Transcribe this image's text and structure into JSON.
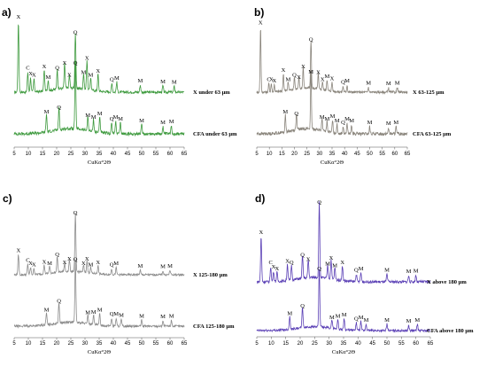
{
  "chart_data": [
    {
      "type": "line",
      "panel": "a)",
      "xlabel": "CuKα°2Θ",
      "x_ticks": [
        5,
        10,
        15,
        20,
        25,
        30,
        35,
        40,
        45,
        50,
        55,
        60,
        65
      ],
      "xlim": [
        5,
        65
      ],
      "color": "#3e9a3e",
      "series": [
        {
          "name": "X under 63 µm",
          "peaks": [
            {
              "x": 6.5,
              "h": 1.0,
              "label": "X"
            },
            {
              "x": 9.8,
              "h": 0.28,
              "label": "C"
            },
            {
              "x": 10.8,
              "h": 0.2,
              "label": "X"
            },
            {
              "x": 12.0,
              "h": 0.18,
              "label": "X"
            },
            {
              "x": 15.6,
              "h": 0.3,
              "label": "X"
            },
            {
              "x": 17.0,
              "h": 0.15,
              "label": "M"
            },
            {
              "x": 20.2,
              "h": 0.28,
              "label": "Q"
            },
            {
              "x": 22.8,
              "h": 0.35,
              "label": "X"
            },
            {
              "x": 24.5,
              "h": 0.18,
              "label": "X"
            },
            {
              "x": 26.6,
              "h": 0.78,
              "label": "Q"
            },
            {
              "x": 29.5,
              "h": 0.22,
              "label": "M"
            },
            {
              "x": 30.7,
              "h": 0.42,
              "label": "X"
            },
            {
              "x": 32.0,
              "h": 0.18,
              "label": "M"
            },
            {
              "x": 34.6,
              "h": 0.24,
              "label": "X"
            },
            {
              "x": 39.5,
              "h": 0.12,
              "label": "Q"
            },
            {
              "x": 41.2,
              "h": 0.14,
              "label": "M"
            },
            {
              "x": 49.5,
              "h": 0.1,
              "label": "M"
            },
            {
              "x": 57.5,
              "h": 0.09,
              "label": "M"
            },
            {
              "x": 61.5,
              "h": 0.08,
              "label": "M"
            }
          ]
        },
        {
          "name": "CFA under 63 µm",
          "peaks": [
            {
              "x": 16.4,
              "h": 0.2,
              "label": "M"
            },
            {
              "x": 20.8,
              "h": 0.25,
              "label": "Q"
            },
            {
              "x": 26.6,
              "h": 0.75,
              "label": "Q"
            },
            {
              "x": 31.0,
              "h": 0.16,
              "label": "M"
            },
            {
              "x": 33.0,
              "h": 0.14,
              "label": "M"
            },
            {
              "x": 35.2,
              "h": 0.18,
              "label": "M"
            },
            {
              "x": 39.4,
              "h": 0.12,
              "label": "Q"
            },
            {
              "x": 40.8,
              "h": 0.14,
              "label": "M"
            },
            {
              "x": 42.5,
              "h": 0.12,
              "label": "M"
            },
            {
              "x": 50.0,
              "h": 0.1,
              "label": "M"
            },
            {
              "x": 57.5,
              "h": 0.08,
              "label": "M"
            },
            {
              "x": 60.5,
              "h": 0.09,
              "label": "M"
            }
          ]
        }
      ]
    },
    {
      "type": "line",
      "panel": "b)",
      "xlabel": "CuKα°2Θ",
      "x_ticks": [
        5,
        10,
        15,
        20,
        25,
        30,
        35,
        40,
        45,
        50,
        55,
        60,
        65
      ],
      "xlim": [
        5,
        65
      ],
      "color": "#8a857c",
      "series": [
        {
          "name": "X 63-125 µm",
          "peaks": [
            {
              "x": 6.5,
              "h": 0.92,
              "label": "X"
            },
            {
              "x": 9.8,
              "h": 0.12,
              "label": "C"
            },
            {
              "x": 10.8,
              "h": 0.12,
              "label": "X"
            },
            {
              "x": 12.0,
              "h": 0.1,
              "label": "X"
            },
            {
              "x": 15.6,
              "h": 0.25,
              "label": "X"
            },
            {
              "x": 17.5,
              "h": 0.12,
              "label": "M"
            },
            {
              "x": 20.0,
              "h": 0.18,
              "label": "Q"
            },
            {
              "x": 21.8,
              "h": 0.15,
              "label": "X"
            },
            {
              "x": 23.5,
              "h": 0.3,
              "label": "X"
            },
            {
              "x": 26.6,
              "h": 0.68,
              "label": "Q"
            },
            {
              "x": 29.5,
              "h": 0.22,
              "label": "X"
            },
            {
              "x": 31.2,
              "h": 0.12,
              "label": "X"
            },
            {
              "x": 33.0,
              "h": 0.16,
              "label": "M"
            },
            {
              "x": 35.0,
              "h": 0.13,
              "label": "X"
            },
            {
              "x": 39.4,
              "h": 0.08,
              "label": "Q"
            },
            {
              "x": 41.0,
              "h": 0.1,
              "label": "M"
            },
            {
              "x": 49.5,
              "h": 0.07,
              "label": "M"
            },
            {
              "x": 57.5,
              "h": 0.06,
              "label": "M"
            },
            {
              "x": 61.0,
              "h": 0.07,
              "label": "M"
            }
          ]
        },
        {
          "name": "CFA 63-125 µm",
          "peaks": [
            {
              "x": 16.4,
              "h": 0.2,
              "label": "M"
            },
            {
              "x": 20.8,
              "h": 0.18,
              "label": "Q"
            },
            {
              "x": 26.6,
              "h": 0.65,
              "label": "M"
            },
            {
              "x": 31.0,
              "h": 0.14,
              "label": "M"
            },
            {
              "x": 33.0,
              "h": 0.12,
              "label": "M"
            },
            {
              "x": 35.2,
              "h": 0.15,
              "label": "M"
            },
            {
              "x": 37.0,
              "h": 0.1,
              "label": "M"
            },
            {
              "x": 39.4,
              "h": 0.08,
              "label": "Q"
            },
            {
              "x": 41.0,
              "h": 0.12,
              "label": "M"
            },
            {
              "x": 42.8,
              "h": 0.1,
              "label": "M"
            },
            {
              "x": 50.0,
              "h": 0.08,
              "label": "M"
            },
            {
              "x": 57.5,
              "h": 0.07,
              "label": "M"
            },
            {
              "x": 60.5,
              "h": 0.08,
              "label": "M"
            }
          ]
        }
      ]
    },
    {
      "type": "line",
      "panel": "c)",
      "xlabel": "CuKα°2Θ",
      "x_ticks": [
        5,
        10,
        15,
        20,
        25,
        30,
        35,
        40,
        45,
        50,
        55,
        60,
        65
      ],
      "xlim": [
        5,
        65
      ],
      "color": "#8c8c8c",
      "series": [
        {
          "name": "X 125-180 µm",
          "peaks": [
            {
              "x": 6.5,
              "h": 0.35,
              "label": "X"
            },
            {
              "x": 9.8,
              "h": 0.18,
              "label": "C"
            },
            {
              "x": 10.8,
              "h": 0.12,
              "label": "X"
            },
            {
              "x": 12.0,
              "h": 0.1,
              "label": "X"
            },
            {
              "x": 15.6,
              "h": 0.15,
              "label": "X"
            },
            {
              "x": 17.5,
              "h": 0.12,
              "label": "M"
            },
            {
              "x": 20.2,
              "h": 0.28,
              "label": "Q"
            },
            {
              "x": 22.8,
              "h": 0.14,
              "label": "X"
            },
            {
              "x": 24.5,
              "h": 0.2,
              "label": "X"
            },
            {
              "x": 26.6,
              "h": 1.0,
              "label": "Q"
            },
            {
              "x": 29.5,
              "h": 0.12,
              "label": "X"
            },
            {
              "x": 30.7,
              "h": 0.2,
              "label": "X"
            },
            {
              "x": 32.0,
              "h": 0.1,
              "label": "M"
            },
            {
              "x": 34.6,
              "h": 0.14,
              "label": "X"
            },
            {
              "x": 39.4,
              "h": 0.1,
              "label": "Q"
            },
            {
              "x": 41.0,
              "h": 0.12,
              "label": "M"
            },
            {
              "x": 49.5,
              "h": 0.08,
              "label": "M"
            },
            {
              "x": 57.5,
              "h": 0.07,
              "label": "M"
            },
            {
              "x": 60.0,
              "h": 0.08,
              "label": "M"
            }
          ]
        },
        {
          "name": "CFA 125-180 µm",
          "peaks": [
            {
              "x": 16.4,
              "h": 0.18,
              "label": "M"
            },
            {
              "x": 20.8,
              "h": 0.32,
              "label": "Q"
            },
            {
              "x": 26.6,
              "h": 0.95,
              "label": "Q"
            },
            {
              "x": 31.0,
              "h": 0.14,
              "label": "M"
            },
            {
              "x": 33.0,
              "h": 0.15,
              "label": "M"
            },
            {
              "x": 35.2,
              "h": 0.18,
              "label": "M"
            },
            {
              "x": 39.4,
              "h": 0.12,
              "label": "Q"
            },
            {
              "x": 41.0,
              "h": 0.12,
              "label": "M"
            },
            {
              "x": 42.8,
              "h": 0.1,
              "label": "M"
            },
            {
              "x": 50.0,
              "h": 0.09,
              "label": "M"
            },
            {
              "x": 57.5,
              "h": 0.08,
              "label": "M"
            },
            {
              "x": 60.5,
              "h": 0.09,
              "label": "M"
            }
          ]
        }
      ]
    },
    {
      "type": "line",
      "panel": "d)",
      "xlabel": "CuKα°2Θ",
      "x_ticks": [
        5,
        10,
        15,
        20,
        25,
        30,
        35,
        40,
        45,
        50,
        55,
        60,
        65
      ],
      "xlim": [
        5,
        65
      ],
      "color": "#5a3fb5",
      "series": [
        {
          "name": "X above 180 µm",
          "peaks": [
            {
              "x": 6.5,
              "h": 0.6,
              "label": "X"
            },
            {
              "x": 9.8,
              "h": 0.2,
              "label": "C"
            },
            {
              "x": 10.8,
              "h": 0.14,
              "label": "X"
            },
            {
              "x": 12.0,
              "h": 0.12,
              "label": "X"
            },
            {
              "x": 15.6,
              "h": 0.22,
              "label": "X"
            },
            {
              "x": 17.0,
              "h": 0.2,
              "label": "Q"
            },
            {
              "x": 20.8,
              "h": 0.3,
              "label": "Q"
            },
            {
              "x": 22.8,
              "h": 0.24,
              "label": "X"
            },
            {
              "x": 26.6,
              "h": 1.0,
              "label": "Q"
            },
            {
              "x": 29.5,
              "h": 0.18,
              "label": "M"
            },
            {
              "x": 30.7,
              "h": 0.26,
              "label": "X"
            },
            {
              "x": 32.0,
              "h": 0.16,
              "label": "M"
            },
            {
              "x": 34.6,
              "h": 0.2,
              "label": "X"
            },
            {
              "x": 39.4,
              "h": 0.1,
              "label": "Q"
            },
            {
              "x": 41.0,
              "h": 0.12,
              "label": "M"
            },
            {
              "x": 50.0,
              "h": 0.1,
              "label": "M"
            },
            {
              "x": 57.5,
              "h": 0.08,
              "label": "M"
            },
            {
              "x": 60.0,
              "h": 0.09,
              "label": "M"
            }
          ]
        },
        {
          "name": "CFA above 180 µm",
          "peaks": [
            {
              "x": 16.4,
              "h": 0.2,
              "label": "M"
            },
            {
              "x": 20.8,
              "h": 0.32,
              "label": "Q"
            },
            {
              "x": 26.6,
              "h": 0.9,
              "label": "Q"
            },
            {
              "x": 31.0,
              "h": 0.14,
              "label": "M"
            },
            {
              "x": 33.0,
              "h": 0.16,
              "label": "M"
            },
            {
              "x": 35.2,
              "h": 0.18,
              "label": "M"
            },
            {
              "x": 39.4,
              "h": 0.12,
              "label": "Q"
            },
            {
              "x": 41.0,
              "h": 0.14,
              "label": "M"
            },
            {
              "x": 42.8,
              "h": 0.1,
              "label": "M"
            },
            {
              "x": 50.0,
              "h": 0.1,
              "label": "M"
            },
            {
              "x": 57.5,
              "h": 0.08,
              "label": "M"
            },
            {
              "x": 60.5,
              "h": 0.1,
              "label": "M"
            }
          ]
        }
      ]
    }
  ]
}
